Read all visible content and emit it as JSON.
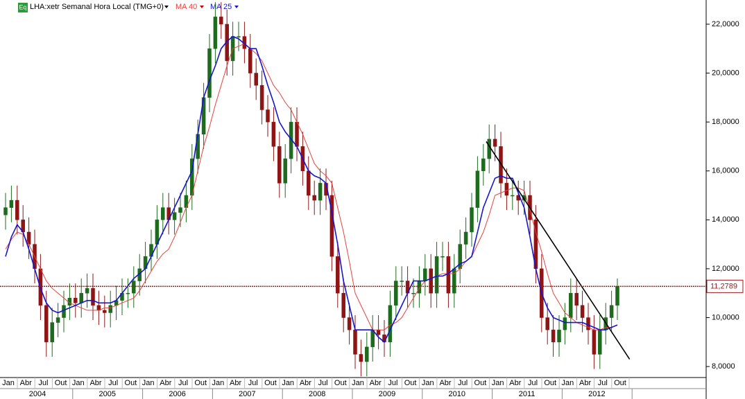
{
  "chart_data": {
    "type": "candlestick",
    "title": "LHA:xetr Semanal Hora Local (TMG+0)",
    "icon": "Eq",
    "categories": [
      "Jan",
      null,
      null,
      "Abr",
      null,
      null,
      "Jul",
      null,
      null,
      "Out",
      null,
      null,
      "Jan",
      null,
      null,
      "Abr",
      null,
      null,
      "Jul",
      null,
      null,
      "Out",
      null,
      null,
      "Jan",
      null,
      null,
      "Abr",
      null,
      null,
      "Jul",
      null,
      null,
      "Out",
      null,
      null,
      "Jan",
      null,
      null,
      "Abr",
      null,
      null,
      "Jul",
      null,
      null,
      "Out",
      null,
      null,
      "Jan",
      null,
      null,
      "Abr",
      null,
      null,
      "Jul",
      null,
      null,
      "Out",
      null,
      null,
      "Jan",
      null,
      null,
      "Abr",
      null,
      null,
      "Jul",
      null,
      null,
      "Out",
      null,
      null,
      "Jan",
      null,
      null,
      "Abr",
      null,
      null,
      "Jul",
      null,
      null,
      "Out",
      null,
      null,
      "Jan",
      null,
      null,
      "Abr",
      null,
      null,
      "Jul",
      null,
      null,
      "Out",
      null,
      null,
      "Jan",
      null,
      null,
      "Abr",
      null,
      null,
      "Jul",
      null,
      null,
      "Out"
    ],
    "years": [
      "2004",
      "2005",
      "2006",
      "2007",
      "2008",
      "2009",
      "2010",
      "2011",
      "2012"
    ],
    "ohlc": [
      [
        14.2,
        15.1,
        13.6,
        14.5
      ],
      [
        14.5,
        15.4,
        13.9,
        14.8
      ],
      [
        14.8,
        15.4,
        13.4,
        14
      ],
      [
        14,
        14.6,
        12.9,
        13.5
      ],
      [
        13.5,
        14.1,
        12.4,
        13
      ],
      [
        13,
        13.6,
        11.4,
        12
      ],
      [
        12,
        12.6,
        9.9,
        10.5
      ],
      [
        10.5,
        11.1,
        8.4,
        9
      ],
      [
        9,
        10.4,
        8.4,
        9.8
      ],
      [
        9.8,
        10.6,
        9.2,
        10
      ],
      [
        10,
        11.1,
        9.4,
        10.5
      ],
      [
        10.5,
        11.4,
        9.9,
        10.8
      ],
      [
        10.8,
        11.4,
        10,
        10.6
      ],
      [
        10.6,
        11.6,
        10,
        11
      ],
      [
        11,
        11.8,
        10.4,
        11.2
      ],
      [
        11.2,
        11.8,
        9.9,
        10.5
      ],
      [
        10.5,
        11.1,
        9.7,
        10.3
      ],
      [
        10.3,
        10.9,
        9.6,
        10.2
      ],
      [
        10.2,
        11.1,
        9.6,
        10.5
      ],
      [
        10.5,
        11.3,
        9.9,
        10.7
      ],
      [
        10.7,
        11.6,
        10.1,
        11
      ],
      [
        11,
        11.6,
        10.4,
        11
      ],
      [
        11,
        12.1,
        10.4,
        11.5
      ],
      [
        11.5,
        12.6,
        10.9,
        12
      ],
      [
        12,
        13.1,
        11.4,
        12.5
      ],
      [
        12.5,
        13.6,
        11.9,
        13
      ],
      [
        13,
        14.6,
        12.4,
        14
      ],
      [
        14,
        15.1,
        13.4,
        14.5
      ],
      [
        14.5,
        15.1,
        13.4,
        14
      ],
      [
        14,
        14.9,
        13.4,
        14.3
      ],
      [
        14.3,
        15.1,
        13.7,
        14.5
      ],
      [
        14.5,
        15.6,
        13.9,
        15
      ],
      [
        15,
        17.1,
        14.4,
        16.5
      ],
      [
        16.5,
        18.1,
        15.9,
        17.5
      ],
      [
        17.5,
        19.6,
        16.9,
        19
      ],
      [
        19,
        21.6,
        18.4,
        21
      ],
      [
        21,
        22.9,
        20.4,
        22.3
      ],
      [
        22.3,
        22.9,
        21.4,
        22
      ],
      [
        22,
        22.6,
        19.9,
        20.5
      ],
      [
        20.5,
        22.1,
        19.9,
        21.5
      ],
      [
        21.5,
        22.1,
        20.9,
        21.5
      ],
      [
        21.5,
        22.1,
        20.4,
        21
      ],
      [
        21,
        21.6,
        19.4,
        20
      ],
      [
        20,
        20.6,
        18.9,
        19.5
      ],
      [
        19.5,
        20.1,
        17.9,
        18.5
      ],
      [
        18.5,
        19.1,
        17.4,
        18
      ],
      [
        18,
        18.6,
        16.4,
        17
      ],
      [
        17,
        17.6,
        14.9,
        15.5
      ],
      [
        15.5,
        17.1,
        14.9,
        16.5
      ],
      [
        16.5,
        18.6,
        15.9,
        18
      ],
      [
        18,
        18.6,
        16.4,
        17
      ],
      [
        17,
        17.6,
        15.4,
        16
      ],
      [
        16,
        16.6,
        14.4,
        15
      ],
      [
        15,
        15.6,
        14.2,
        14.8
      ],
      [
        14.8,
        16.1,
        14.2,
        15.5
      ],
      [
        15.5,
        16.1,
        14.4,
        15
      ],
      [
        15,
        15.6,
        11.9,
        12.5
      ],
      [
        12.5,
        13.1,
        10.4,
        11
      ],
      [
        11,
        11.6,
        9.4,
        10
      ],
      [
        10,
        10.6,
        8.9,
        9.5
      ],
      [
        9.5,
        10.1,
        7.9,
        8.5
      ],
      [
        8.5,
        9.1,
        7.6,
        8.2
      ],
      [
        8.2,
        9.4,
        7.6,
        8.8
      ],
      [
        8.8,
        10.1,
        8.2,
        9.5
      ],
      [
        9.5,
        10.1,
        8.7,
        9.3
      ],
      [
        9.3,
        9.9,
        8.4,
        9
      ],
      [
        9,
        11.1,
        8.4,
        10.5
      ],
      [
        10.5,
        12.1,
        9.9,
        11.5
      ],
      [
        11.5,
        12.1,
        10.9,
        11.5
      ],
      [
        11.5,
        12.1,
        10.4,
        11
      ],
      [
        11,
        11.6,
        10.4,
        11
      ],
      [
        11,
        12.1,
        10.4,
        11.5
      ],
      [
        11.5,
        12.6,
        10.9,
        12
      ],
      [
        12,
        12.6,
        10.4,
        11
      ],
      [
        11,
        13.1,
        10.4,
        12.5
      ],
      [
        12.5,
        13.1,
        11.9,
        12.5
      ],
      [
        12.5,
        13.1,
        10.4,
        11
      ],
      [
        11,
        12.6,
        10.4,
        12
      ],
      [
        12,
        13.6,
        11.4,
        13
      ],
      [
        13,
        14.1,
        12.4,
        13.5
      ],
      [
        13.5,
        15.1,
        12.9,
        14.5
      ],
      [
        14.5,
        16.6,
        13.9,
        16
      ],
      [
        16,
        17.1,
        15.4,
        16.5
      ],
      [
        16.5,
        17.9,
        15.9,
        17.3
      ],
      [
        17.3,
        17.9,
        16.4,
        17
      ],
      [
        17,
        17.6,
        14.9,
        15.5
      ],
      [
        15.5,
        16.1,
        14.4,
        15
      ],
      [
        15,
        15.6,
        14.4,
        15
      ],
      [
        15,
        15.6,
        14.2,
        14.8
      ],
      [
        14.8,
        15.6,
        14.2,
        15
      ],
      [
        15,
        15.6,
        13.4,
        14
      ],
      [
        14,
        14.6,
        11.4,
        12
      ],
      [
        12,
        12.6,
        9.4,
        10
      ],
      [
        10,
        10.6,
        8.9,
        9.5
      ],
      [
        9.5,
        10.1,
        8.4,
        9
      ],
      [
        9,
        10.1,
        8.4,
        9.5
      ],
      [
        9.5,
        10.6,
        8.9,
        10
      ],
      [
        10,
        11.6,
        9.4,
        11
      ],
      [
        11,
        11.6,
        9.9,
        10.5
      ],
      [
        10.5,
        11.1,
        9.4,
        10
      ],
      [
        10,
        10.6,
        8.9,
        9.5
      ],
      [
        9.5,
        10.1,
        7.9,
        8.5
      ],
      [
        8.5,
        10.1,
        7.9,
        9.5
      ],
      [
        9.5,
        10.6,
        8.9,
        10
      ],
      [
        10,
        11.1,
        9.4,
        10.5
      ],
      [
        10.5,
        11.6,
        9.9,
        11.2789
      ]
    ],
    "up_color": "#1d6b1d",
    "down_color": "#8e1515",
    "series": [
      {
        "name": "MA 40",
        "color": "#e8413c",
        "values": [
          12.8,
          13.2,
          13.5,
          13.4,
          13,
          12.5,
          12,
          11.5,
          11.2,
          11,
          10.8,
          10.6,
          10.5,
          10.4,
          10.3,
          10.3,
          10.3,
          10.4,
          10.4,
          10.5,
          10.6,
          10.7,
          10.8,
          11.1,
          11.5,
          11.9,
          12.3,
          12.6,
          12.8,
          13.3,
          13.9,
          14.5,
          15,
          16,
          17,
          17.8,
          18.7,
          19.5,
          20.3,
          21,
          21.1,
          21.2,
          21,
          20.8,
          20.5,
          20,
          19.5,
          19.2,
          18.8,
          18.5,
          18,
          17.5,
          16.9,
          16.3,
          16,
          15.8,
          15.5,
          14.5,
          13.5,
          12.3,
          11,
          10.5,
          10,
          9.5,
          9.5,
          9.5,
          9.7,
          9.8,
          10,
          10.4,
          10.8,
          11.2,
          11.5,
          11.6,
          11.7,
          11.8,
          11.8,
          11.8,
          12,
          12.3,
          12.5,
          13,
          13.5,
          14.2,
          15,
          15.1,
          15.2,
          15.3,
          15.3,
          15.2,
          14.4,
          13.5,
          12.7,
          11.8,
          11,
          10.6,
          10.2,
          10,
          9.8,
          9.7,
          9.6,
          9.5,
          9.5,
          9.6,
          9.6,
          9.7
        ]
      },
      {
        "name": "MA 25",
        "color": "#1414d2",
        "values": [
          12.5,
          13.3,
          13.8,
          13.5,
          12.8,
          12,
          11.2,
          10.6,
          10.3,
          10.2,
          10.3,
          10.4,
          10.5,
          10.6,
          10.7,
          10.7,
          10.6,
          10.6,
          10.6,
          10.7,
          11,
          11.3,
          11.6,
          11.8,
          12,
          12.5,
          13,
          13.5,
          14,
          14.5,
          15,
          15.5,
          16,
          17.5,
          19,
          19.7,
          20.3,
          21,
          21.3,
          21.5,
          21.4,
          21.2,
          21,
          21,
          20.3,
          19.5,
          18.8,
          18,
          17.6,
          17.3,
          17,
          16.5,
          16,
          15.8,
          15.7,
          15.5,
          14.3,
          13,
          11.5,
          10.5,
          9.5,
          9.5,
          9.5,
          9.5,
          9.2,
          9,
          9.5,
          10,
          10.5,
          11,
          11.5,
          11.5,
          11.5,
          11.6,
          11.7,
          11.7,
          11.8,
          12,
          12.2,
          12.3,
          12.5,
          13.5,
          14.5,
          15.1,
          15.7,
          15.8,
          15.7,
          15.7,
          15.1,
          14.5,
          13.3,
          12,
          11,
          10.4,
          10,
          9.9,
          9.8,
          9.8,
          9.8,
          9.8,
          9.7,
          9.6,
          9.5,
          9.5,
          9.6,
          9.7
        ]
      }
    ],
    "last_price": {
      "value": 11.2789,
      "label": "11,2789",
      "color": "#a01818"
    },
    "trendline": {
      "x": [
        82.5,
        107.1
      ],
      "y": [
        17.2,
        8.3
      ]
    },
    "ylim": [
      7.55,
      22.99
    ],
    "yticks": [
      {
        "value": 8,
        "label": "8,0000"
      },
      {
        "value": 10,
        "label": "10,0000"
      },
      {
        "value": 12,
        "label": "12,0000"
      },
      {
        "value": 14,
        "label": "14,0000"
      },
      {
        "value": 16,
        "label": "16,0000"
      },
      {
        "value": 18,
        "label": "18,0000"
      },
      {
        "value": 20,
        "label": "20,0000"
      },
      {
        "value": 22,
        "label": "22,0000"
      }
    ]
  }
}
